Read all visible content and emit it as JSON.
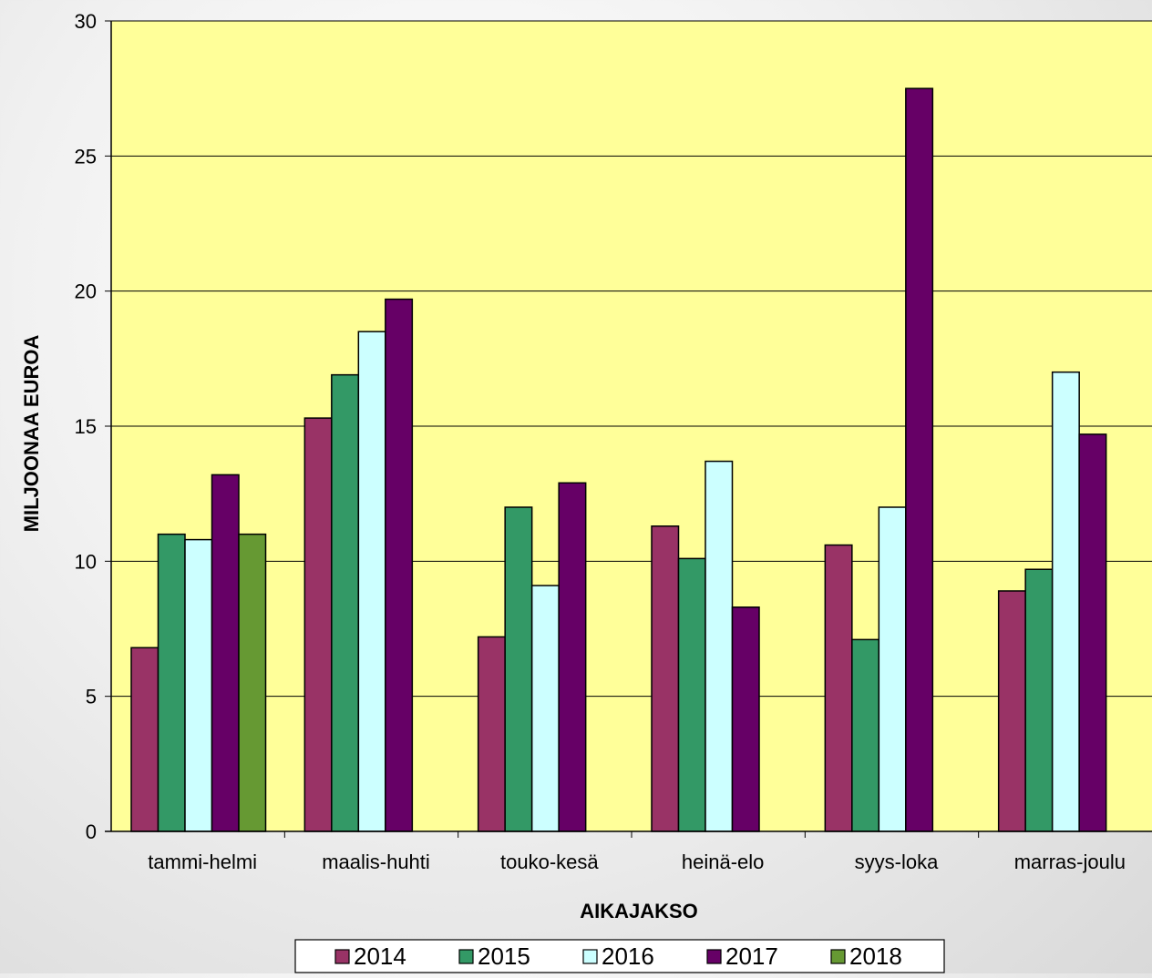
{
  "chart_data": {
    "type": "bar",
    "title": "",
    "xlabel": "AIKAJAKSO",
    "ylabel": "MILJOONAA EUROA",
    "ylim": [
      0,
      30
    ],
    "yticks": [
      0,
      5,
      10,
      15,
      20,
      25,
      30
    ],
    "grid": true,
    "legend_position": "bottom",
    "plot_background": "#ffff99",
    "categories": [
      "tammi-helmi",
      "maalis-huhti",
      "touko-kesä",
      "heinä-elo",
      "syys-loka",
      "marras-joulu"
    ],
    "series": [
      {
        "name": "2014",
        "color": "#993366",
        "values": [
          6.8,
          15.3,
          7.2,
          11.3,
          10.6,
          8.9
        ]
      },
      {
        "name": "2015",
        "color": "#339966",
        "values": [
          11.0,
          16.9,
          12.0,
          10.1,
          7.1,
          9.7
        ]
      },
      {
        "name": "2016",
        "color": "#ccffff",
        "values": [
          10.8,
          18.5,
          9.1,
          13.7,
          12.0,
          17.0
        ]
      },
      {
        "name": "2017",
        "color": "#660066",
        "values": [
          13.2,
          19.7,
          12.9,
          8.3,
          27.5,
          14.7
        ]
      },
      {
        "name": "2018",
        "color": "#669933",
        "values": [
          11.0,
          null,
          null,
          null,
          null,
          null
        ]
      }
    ]
  }
}
